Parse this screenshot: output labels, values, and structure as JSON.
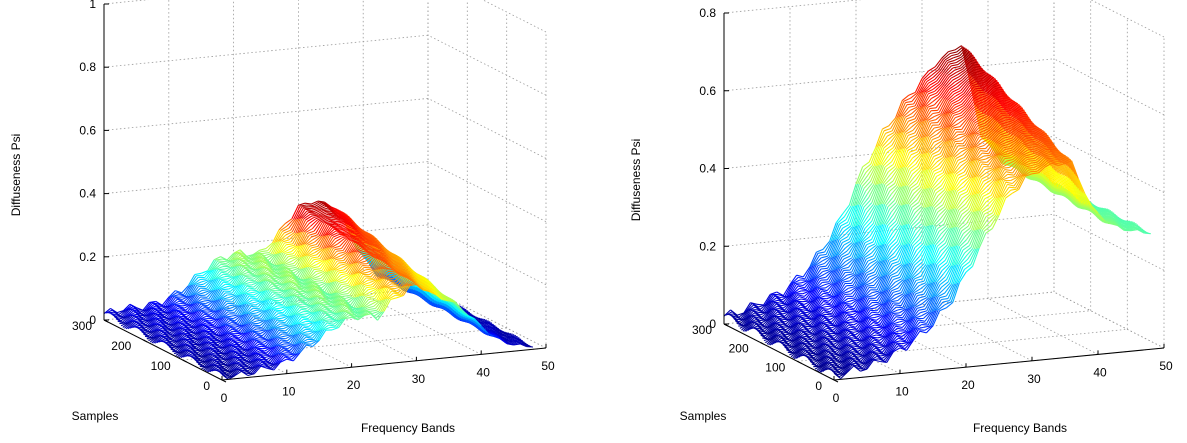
{
  "chart_data": [
    {
      "type": "surface",
      "xlabel": "Frequency Bands",
      "ylabel": "Samples",
      "zlabel": "Diffuseness Psi",
      "x_ticks": [
        0,
        10,
        20,
        30,
        40,
        50
      ],
      "y_ticks": [
        0,
        100,
        200,
        300
      ],
      "z_ticks": [
        "0",
        "0.2",
        "0.4",
        "0.6",
        "0.8",
        "1"
      ],
      "xlim": [
        0,
        50
      ],
      "ylim": [
        0,
        300
      ],
      "zlim": [
        0,
        1
      ],
      "colormap": "jet",
      "grid": true,
      "profile_x": [
        0,
        3,
        6,
        9,
        12,
        15,
        18,
        21,
        24,
        27,
        30,
        33,
        36,
        39,
        42,
        45,
        48
      ],
      "profile_z_start": [
        0.02,
        0.03,
        0.03,
        0.04,
        0.07,
        0.12,
        0.16,
        0.17,
        0.16,
        0.22,
        0.3,
        0.31,
        0.28,
        0.15,
        0.06,
        0.03,
        0.02
      ],
      "profile_z_end": [
        0.01,
        0.01,
        0.02,
        0.03,
        0.06,
        0.1,
        0.14,
        0.16,
        0.15,
        0.21,
        0.24,
        0.2,
        0.17,
        0.11,
        0.05,
        0.02,
        0.01
      ]
    },
    {
      "type": "surface",
      "xlabel": "Frequency Bands",
      "ylabel": "Samples",
      "zlabel": "Diffuseness Psi",
      "x_ticks": [
        0,
        10,
        20,
        30,
        40,
        50
      ],
      "y_ticks": [
        0,
        100,
        200,
        300
      ],
      "z_ticks": [
        "0",
        "0.2",
        "0.4",
        "0.6",
        "0.8"
      ],
      "xlim": [
        0,
        50
      ],
      "ylim": [
        0,
        300
      ],
      "zlim": [
        0,
        0.8
      ],
      "colormap": "jet",
      "grid": true,
      "profile_x": [
        0,
        3,
        6,
        9,
        12,
        15,
        18,
        21,
        24,
        27,
        30,
        33,
        36,
        39,
        42,
        45,
        48
      ],
      "profile_z_start": [
        0.02,
        0.03,
        0.05,
        0.07,
        0.11,
        0.17,
        0.25,
        0.36,
        0.45,
        0.52,
        0.58,
        0.63,
        0.66,
        0.42,
        0.35,
        0.32,
        0.3
      ],
      "profile_z_end": [
        0.01,
        0.02,
        0.03,
        0.05,
        0.08,
        0.12,
        0.18,
        0.27,
        0.36,
        0.44,
        0.48,
        0.5,
        0.5,
        0.38,
        0.33,
        0.31,
        0.3
      ]
    }
  ]
}
